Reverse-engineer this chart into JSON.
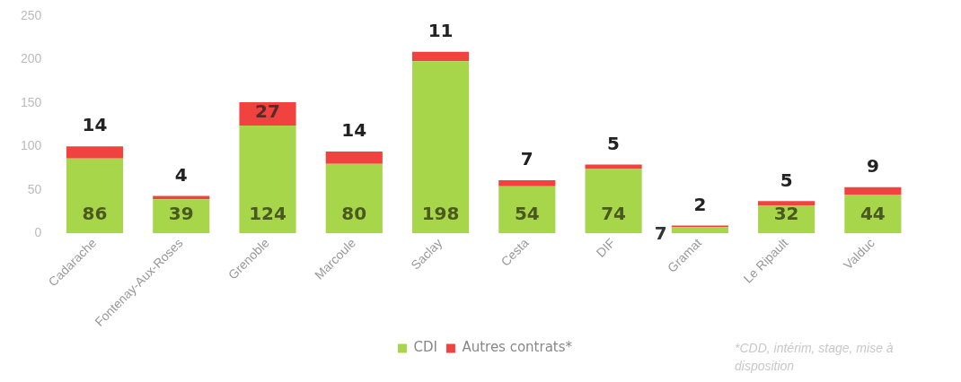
{
  "chart_data": {
    "type": "bar",
    "stacked": true,
    "categories": [
      "Cadarache",
      "Fontenay-Aux-Roses",
      "Grenoble",
      "Marcoule",
      "Saclay",
      "Cesta",
      "DIF",
      "Gramat",
      "Le Ripault",
      "Valduc"
    ],
    "series": [
      {
        "name": "CDI",
        "color": "#a8d64b",
        "values": [
          86,
          39,
          124,
          80,
          198,
          54,
          74,
          7,
          32,
          44
        ]
      },
      {
        "name": "Autres contrats*",
        "color": "#f0423f",
        "values": [
          14,
          4,
          27,
          14,
          11,
          7,
          5,
          2,
          5,
          9
        ]
      }
    ],
    "ylim": [
      0,
      250
    ],
    "yticks": [
      0,
      50,
      100,
      150,
      200,
      250
    ],
    "data_labels": true,
    "grid": false,
    "legend": "bottom",
    "annotations": [
      "*CDD, intérim, stage, mise à disposition"
    ]
  }
}
